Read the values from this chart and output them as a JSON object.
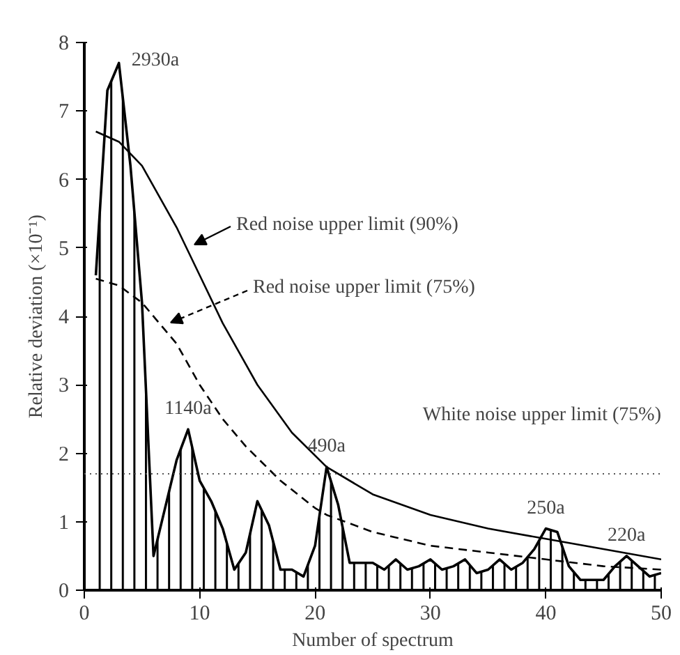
{
  "chart_data": {
    "type": "area",
    "xlabel": "Number of spectrum",
    "ylabel": "Relative deviation (×10⁻¹)",
    "xlim": [
      0,
      50
    ],
    "ylim": [
      0,
      8
    ],
    "xticks": [
      0,
      10,
      20,
      30,
      40,
      50
    ],
    "yticks": [
      0,
      1,
      2,
      3,
      4,
      5,
      6,
      7,
      8
    ],
    "grid": false,
    "series": [
      {
        "color": "#000000",
        "x": [
          1,
          2,
          3,
          4,
          5,
          6,
          7,
          8,
          9,
          10,
          11,
          12,
          13,
          14,
          15,
          16,
          17,
          18,
          19,
          20,
          21,
          22,
          23,
          24,
          25,
          26,
          27,
          28,
          29,
          30,
          31,
          32,
          33,
          34,
          35,
          36,
          37,
          38,
          39,
          40,
          41,
          42,
          43,
          44,
          45,
          46,
          47,
          48,
          49,
          50
        ],
        "values": [
          4.6,
          7.3,
          7.7,
          6.2,
          4.2,
          0.5,
          1.2,
          1.9,
          2.35,
          1.6,
          1.3,
          0.9,
          0.3,
          0.55,
          1.3,
          0.95,
          0.3,
          0.3,
          0.2,
          0.65,
          1.8,
          1.25,
          0.4,
          0.4,
          0.4,
          0.3,
          0.45,
          0.3,
          0.35,
          0.45,
          0.3,
          0.35,
          0.45,
          0.25,
          0.3,
          0.45,
          0.3,
          0.4,
          0.6,
          0.9,
          0.85,
          0.35,
          0.15,
          0.15,
          0.15,
          0.35,
          0.5,
          0.35,
          0.2,
          0.25
        ]
      },
      {
        "type": "line",
        "color": "#000000",
        "line_style": "solid",
        "x": [
          1,
          3,
          5,
          8,
          10,
          12,
          15,
          18,
          21,
          25,
          30,
          35,
          40,
          45,
          50
        ],
        "values": [
          6.7,
          6.55,
          6.2,
          5.3,
          4.6,
          3.9,
          3.0,
          2.3,
          1.8,
          1.4,
          1.1,
          0.9,
          0.75,
          0.6,
          0.45
        ]
      },
      {
        "type": "line",
        "color": "#000000",
        "line_style": "dashed",
        "x": [
          1,
          3,
          5,
          8,
          10,
          12,
          14,
          17,
          20,
          21,
          25,
          30,
          35,
          40,
          45,
          50
        ],
        "values": [
          4.55,
          4.45,
          4.2,
          3.6,
          3.0,
          2.5,
          2.1,
          1.6,
          1.2,
          1.1,
          0.85,
          0.65,
          0.55,
          0.45,
          0.35,
          0.3
        ]
      }
    ],
    "ref_lines": [
      {
        "axis": "y",
        "value": 1.7,
        "label": "White noise upper limit (75%)",
        "color": "#555555",
        "line_style": "dotted"
      }
    ],
    "annotations": [
      {
        "text": "2930a",
        "x": 3,
        "y": 7.7
      },
      {
        "text": "1140a",
        "x": 9,
        "y": 2.35
      },
      {
        "text": "490a",
        "x": 21,
        "y": 1.8
      },
      {
        "text": "250a",
        "x": 40,
        "y": 0.9
      },
      {
        "text": "220a",
        "x": 47,
        "y": 0.5
      },
      "Red noise upper limit (90%)",
      "Red noise upper limit (75%)"
    ]
  }
}
